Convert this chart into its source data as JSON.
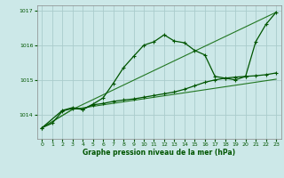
{
  "background_color": "#cce8e8",
  "grid_color": "#aacccc",
  "line_color_dark": "#005500",
  "line_color_mid": "#227722",
  "xlabel": "Graphe pression niveau de la mer (hPa)",
  "ylim": [
    1013.3,
    1017.15
  ],
  "xlim": [
    -0.5,
    23.5
  ],
  "yticks": [
    1014,
    1015,
    1016,
    1017
  ],
  "xticks": [
    0,
    1,
    2,
    3,
    4,
    5,
    6,
    7,
    8,
    9,
    10,
    11,
    12,
    13,
    14,
    15,
    16,
    17,
    18,
    19,
    20,
    21,
    22,
    23
  ],
  "line1_x": [
    0,
    1,
    2,
    3,
    4,
    5,
    6,
    7,
    8,
    9,
    10,
    11,
    12,
    13,
    14,
    15,
    16,
    17,
    18,
    19,
    20,
    21,
    22,
    23
  ],
  "line1_y": [
    1013.62,
    1013.75,
    1014.1,
    1014.18,
    1014.15,
    1014.3,
    1014.48,
    1014.9,
    1015.35,
    1015.68,
    1016.0,
    1016.1,
    1016.3,
    1016.12,
    1016.07,
    1015.85,
    1015.72,
    1015.1,
    1015.05,
    1015.0,
    1015.1,
    1016.1,
    1016.6,
    1016.95
  ],
  "line2_x": [
    0,
    2,
    3,
    4,
    5,
    6,
    7,
    8,
    9,
    10,
    11,
    12,
    13,
    14,
    15,
    16,
    17,
    18,
    19,
    20,
    21,
    22,
    23
  ],
  "line2_y": [
    1013.62,
    1014.12,
    1014.2,
    1014.15,
    1014.28,
    1014.32,
    1014.38,
    1014.42,
    1014.45,
    1014.5,
    1014.55,
    1014.6,
    1014.65,
    1014.73,
    1014.83,
    1014.93,
    1015.0,
    1015.05,
    1015.08,
    1015.1,
    1015.12,
    1015.15,
    1015.2
  ],
  "line3_x": [
    0,
    3,
    23
  ],
  "line3_y": [
    1013.62,
    1014.15,
    1015.02
  ],
  "line4_x": [
    0,
    3,
    23
  ],
  "line4_y": [
    1013.62,
    1014.15,
    1016.95
  ]
}
